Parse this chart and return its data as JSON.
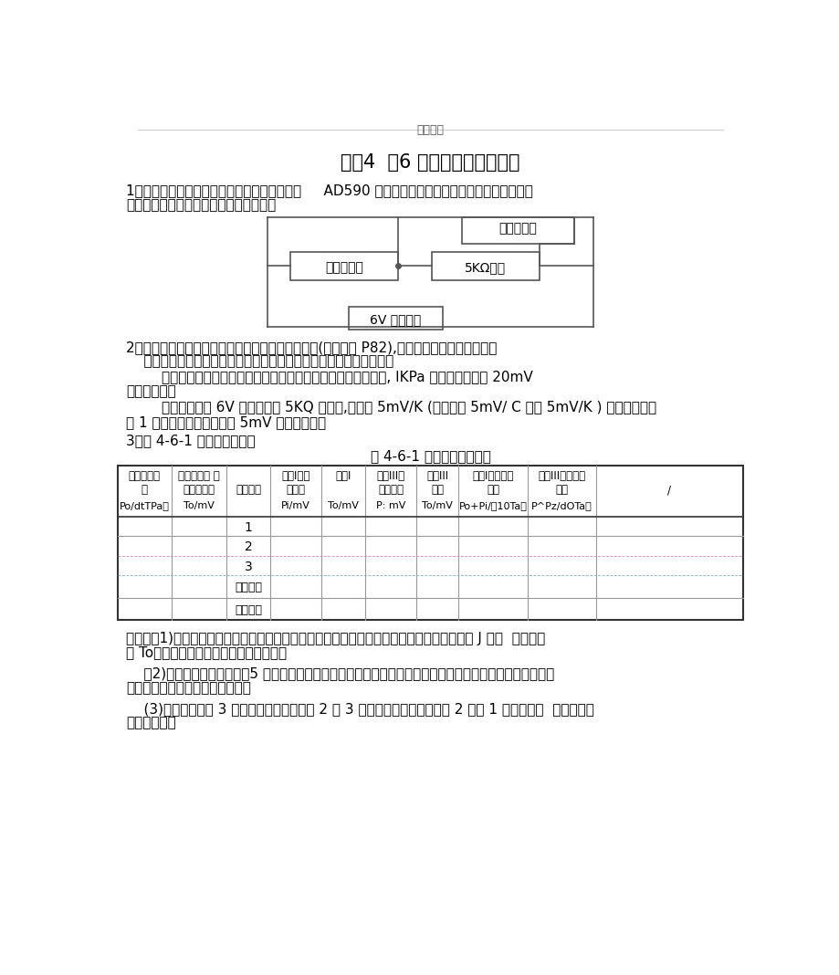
{
  "header_text": "百嗄文库",
  "title": "实验4  －6 空气比热容比的测定",
  "para1_line1": "1、按照如下示意图连接电路，注意温度传感器     AD590 和测温电压表的正负极不要接错。压力传感",
  "para1_line2": "器直接连接测量空气压强的数字电压表。",
  "circuit_label_wendu": "测温电压表",
  "circuit_label_wendu_sensor": "温度传感器",
  "circuit_label_5k": "5KΩ电阻",
  "circuit_label_6v": "6V 直流电源",
  "para2_line1": "2、利用传感器可将非电学量转换为电学量进行测量(阅读课本 P82),如本实验中利用压力传感器",
  "para2_line2": "    和温度传感器将压强和温度转换为电压，利用数字电压表进行测量。",
  "para2_line3": "        测空气压强的数字电压表用于测量超过环境气压的那部分压强, IKPa 的压强变化产生 20mV",
  "para2_line4": "的电压变化。",
  "para2_line5": "        温度传感器接 6V 直流电源和 5KQ 电阻后,可产生 5mV/K (将课本中 5mV/ C 改为 5mV/K ) 的信号电压，",
  "para2_line6": "即 1 开尔文的温度变化产生 5mV 的电压变化。",
  "para3_title": "3、表 4-6-1 改为如下格式：",
  "table_title": "表 4-6-1 数据记录参考用表",
  "header_row1": [
    "周围大气压",
    "实验开始前 测",
    "",
    "状态I压强",
    "状态I",
    "状态III压",
    "状态III",
    "状态I气体实际",
    "状态III气体实际",
    ""
  ],
  "header_row2": [
    "强",
    "量：的室温",
    "测址次数",
    "显示值",
    "",
    "强显示值",
    "温度",
    "压强",
    "压强",
    "/"
  ],
  "header_row3": [
    "Po/dtTPa）",
    "To/mV",
    "",
    "Pi/mV",
    "To/mV",
    "P: mV",
    "To/mV",
    "Po+Pi/（10Ta）",
    "P^Pz/dOTa）",
    ""
  ],
  "data_row_labels": [
    "1",
    "2",
    "3",
    "提前关闭",
    "推迟关闭"
  ],
  "note1": "说明：（1)开始实验前，预热仪器和调零后，将进气活塞和放气活塞都打开，记录此时测温电 J 玉表  显示的室",
  "note1b": "温 To。周围大气压强值由实验老师告知。",
  "note2": "    （2)为便于比较实验结果，5 次测量过程中，用打气球打气时，尽量将日控制在相同的值。打气结束，将进气",
  "note2b": "活塞也关闭，等待瓶内空气稳定。",
  "note3": "    (3)按照课本步骤 3 所述方法正常关闭活塞 2 测 3 次，提前和推迟关闭活塞 2 各测 1 次，提前和  推迟的效果",
  "note3b": "要明显一点。",
  "bg_color": "#ffffff",
  "header_line_color": "#cccccc",
  "text_color": "#000000",
  "circuit_color": "#555555",
  "table_outer_color": "#333333",
  "table_inner_color": "#999999"
}
